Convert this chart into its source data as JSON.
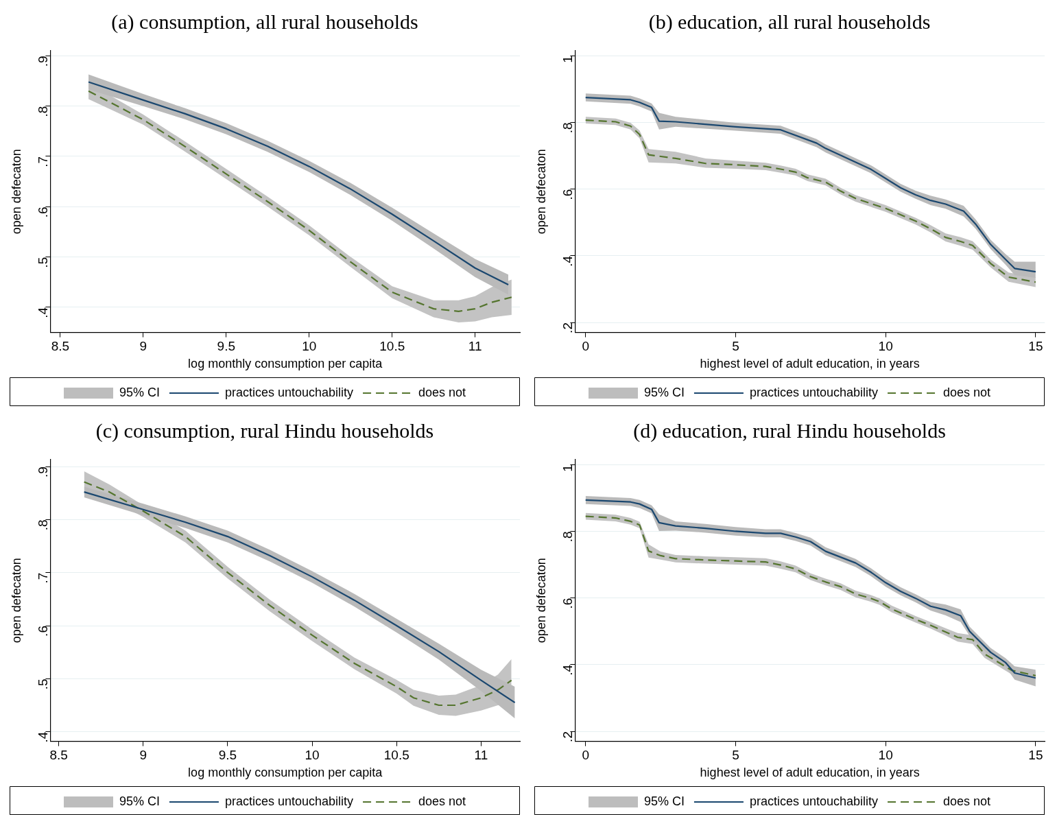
{
  "chart_data": [
    {
      "type": "line",
      "title": "(a) consumption, all rural households",
      "xlabel": "log monthly consumption per capita",
      "ylabel": "open defecaton",
      "legend_title": "95% CI",
      "legend": "bottom",
      "grid": "y",
      "marker": "none",
      "xlim": [
        8.44,
        11.27
      ],
      "xticks": [
        8.5,
        9,
        9.5,
        10,
        10.5,
        11
      ],
      "ylim": [
        0.35,
        0.91
      ],
      "yticks": [
        {
          "value": 0.4,
          "label": ".4"
        },
        {
          "value": 0.5,
          "label": ".5"
        },
        {
          "value": 0.6,
          "label": ".6"
        },
        {
          "value": 0.7,
          "label": ".7"
        },
        {
          "value": 0.8,
          "label": ".8"
        },
        {
          "value": 0.9,
          "label": ".9"
        }
      ],
      "series": [
        {
          "name": "practices untouchability",
          "color": "#1a476f",
          "line_style": "solid",
          "x": [
            8.67,
            9,
            9.25,
            9.5,
            9.75,
            10,
            10.25,
            10.5,
            10.75,
            11,
            11.2
          ],
          "values": [
            0.848,
            0.812,
            0.785,
            0.755,
            0.72,
            0.68,
            0.635,
            0.585,
            0.532,
            0.478,
            0.445
          ],
          "lower": [
            0.833,
            0.8,
            0.774,
            0.744,
            0.709,
            0.669,
            0.623,
            0.572,
            0.517,
            0.46,
            0.425
          ],
          "upper": [
            0.863,
            0.824,
            0.796,
            0.766,
            0.731,
            0.691,
            0.647,
            0.598,
            0.547,
            0.496,
            0.465
          ]
        },
        {
          "name": "does not",
          "color": "#55752f",
          "line_style": "dashed",
          "x": [
            8.67,
            9,
            9.25,
            9.5,
            9.75,
            10,
            10.25,
            10.5,
            10.75,
            10.9,
            11,
            11.1,
            11.22
          ],
          "values": [
            0.83,
            0.773,
            0.72,
            0.665,
            0.61,
            0.553,
            0.49,
            0.43,
            0.397,
            0.392,
            0.397,
            0.41,
            0.42
          ],
          "lower": [
            0.814,
            0.763,
            0.71,
            0.655,
            0.6,
            0.543,
            0.48,
            0.418,
            0.38,
            0.37,
            0.372,
            0.38,
            0.385
          ],
          "upper": [
            0.846,
            0.783,
            0.73,
            0.675,
            0.62,
            0.563,
            0.5,
            0.442,
            0.414,
            0.414,
            0.422,
            0.44,
            0.455
          ]
        }
      ]
    },
    {
      "type": "line",
      "title": "(b) education, all rural households",
      "xlabel": "highest level of adult education, in years",
      "ylabel": "open defecaton",
      "legend_title": "95% CI",
      "legend": "bottom",
      "grid": "y",
      "marker": "none",
      "xlim": [
        -0.35,
        15.3
      ],
      "xticks": [
        0,
        5,
        10,
        15
      ],
      "ylim": [
        0.17,
        1.015
      ],
      "yticks": [
        {
          "value": 0.2,
          "label": ".2"
        },
        {
          "value": 0.4,
          "label": ".4"
        },
        {
          "value": 0.6,
          "label": ".6"
        },
        {
          "value": 0.8,
          "label": ".8"
        },
        1
      ],
      "series": [
        {
          "name": "practices untouchability",
          "color": "#1a476f",
          "line_style": "solid",
          "x": [
            0,
            1.5,
            1.8,
            2.2,
            2.45,
            3,
            5,
            6.5,
            7.7,
            8,
            9.5,
            10.5,
            11,
            11.5,
            12,
            12.6,
            13,
            13.5,
            14,
            14.3,
            15
          ],
          "values": [
            0.875,
            0.868,
            0.86,
            0.845,
            0.804,
            0.802,
            0.787,
            0.778,
            0.738,
            0.722,
            0.66,
            0.604,
            0.583,
            0.566,
            0.555,
            0.534,
            0.495,
            0.434,
            0.389,
            0.362,
            0.352
          ],
          "lower": [
            0.863,
            0.856,
            0.848,
            0.833,
            0.779,
            0.787,
            0.775,
            0.766,
            0.726,
            0.71,
            0.648,
            0.592,
            0.571,
            0.552,
            0.541,
            0.518,
            0.481,
            0.42,
            0.373,
            0.342,
            0.334
          ],
          "upper": [
            0.887,
            0.88,
            0.872,
            0.857,
            0.829,
            0.817,
            0.799,
            0.79,
            0.75,
            0.734,
            0.672,
            0.616,
            0.595,
            0.58,
            0.569,
            0.55,
            0.509,
            0.448,
            0.405,
            0.382,
            0.382
          ]
        },
        {
          "name": "does not",
          "color": "#55752f",
          "line_style": "dashed",
          "x": [
            0,
            1,
            1.5,
            1.8,
            2.1,
            3,
            4,
            5,
            6,
            6.5,
            7,
            7.4,
            8,
            8.5,
            9,
            10,
            11,
            11.5,
            12,
            12.5,
            12.9,
            13.5,
            14.1,
            15
          ],
          "values": [
            0.807,
            0.802,
            0.789,
            0.764,
            0.703,
            0.692,
            0.677,
            0.673,
            0.668,
            0.66,
            0.651,
            0.634,
            0.621,
            0.594,
            0.572,
            0.542,
            0.504,
            0.481,
            0.455,
            0.443,
            0.431,
            0.377,
            0.336,
            0.321
          ],
          "lower": [
            0.797,
            0.792,
            0.779,
            0.752,
            0.68,
            0.677,
            0.664,
            0.661,
            0.657,
            0.649,
            0.641,
            0.624,
            0.611,
            0.584,
            0.562,
            0.532,
            0.494,
            0.47,
            0.443,
            0.43,
            0.418,
            0.365,
            0.322,
            0.306
          ],
          "upper": [
            0.817,
            0.812,
            0.799,
            0.776,
            0.72,
            0.712,
            0.692,
            0.685,
            0.679,
            0.671,
            0.661,
            0.644,
            0.631,
            0.604,
            0.582,
            0.552,
            0.514,
            0.492,
            0.467,
            0.456,
            0.444,
            0.389,
            0.35,
            0.336
          ]
        }
      ]
    },
    {
      "type": "line",
      "title": "(c) consumption, rural Hindu households",
      "xlabel": "log monthly consumption per capita",
      "ylabel": "open defecaton",
      "legend_title": "95% CI",
      "legend": "bottom",
      "grid": "y",
      "marker": "none",
      "xlim": [
        8.45,
        11.23
      ],
      "xticks": [
        8.5,
        9,
        9.5,
        10,
        10.5,
        11
      ],
      "ylim": [
        0.382,
        0.913
      ],
      "yticks": [
        {
          "value": 0.4,
          "label": ".4"
        },
        {
          "value": 0.5,
          "label": ".5"
        },
        {
          "value": 0.6,
          "label": ".6"
        },
        {
          "value": 0.7,
          "label": ".7"
        },
        {
          "value": 0.8,
          "label": ".8"
        },
        {
          "value": 0.9,
          "label": ".9"
        }
      ],
      "series": [
        {
          "name": "practices untouchability",
          "color": "#1a476f",
          "line_style": "solid",
          "x": [
            8.65,
            9,
            9.25,
            9.5,
            9.75,
            10,
            10.25,
            10.5,
            10.75,
            11,
            11.2
          ],
          "values": [
            0.852,
            0.819,
            0.795,
            0.768,
            0.732,
            0.692,
            0.648,
            0.6,
            0.551,
            0.497,
            0.455
          ],
          "lower": [
            0.842,
            0.808,
            0.784,
            0.757,
            0.721,
            0.681,
            0.636,
            0.587,
            0.536,
            0.477,
            0.425
          ],
          "upper": [
            0.862,
            0.83,
            0.806,
            0.779,
            0.743,
            0.703,
            0.66,
            0.613,
            0.566,
            0.517,
            0.485
          ]
        },
        {
          "name": "does not",
          "color": "#55752f",
          "line_style": "dashed",
          "x": [
            8.65,
            8.8,
            9,
            9.25,
            9.5,
            9.75,
            10,
            10.25,
            10.5,
            10.6,
            10.75,
            10.85,
            11,
            11.1,
            11.18
          ],
          "values": [
            0.871,
            0.852,
            0.816,
            0.768,
            0.7,
            0.638,
            0.582,
            0.529,
            0.485,
            0.464,
            0.45,
            0.45,
            0.464,
            0.479,
            0.497
          ],
          "lower": [
            0.851,
            0.838,
            0.805,
            0.757,
            0.689,
            0.627,
            0.571,
            0.518,
            0.472,
            0.449,
            0.432,
            0.43,
            0.44,
            0.45,
            0.457
          ],
          "upper": [
            0.891,
            0.866,
            0.827,
            0.779,
            0.711,
            0.649,
            0.593,
            0.54,
            0.498,
            0.479,
            0.468,
            0.47,
            0.488,
            0.508,
            0.537
          ]
        }
      ]
    },
    {
      "type": "line",
      "title": "(d) education, rural Hindu households",
      "xlabel": "highest level of adult education, in years",
      "ylabel": "open defecaton",
      "legend_title": "95% CI",
      "legend": "bottom",
      "grid": "y",
      "marker": "none",
      "xlim": [
        -0.35,
        15.3
      ],
      "xticks": [
        0,
        5,
        10,
        15
      ],
      "ylim": [
        0.17,
        1.015
      ],
      "yticks": [
        {
          "value": 0.2,
          "label": ".2"
        },
        {
          "value": 0.4,
          "label": ".4"
        },
        {
          "value": 0.6,
          "label": ".6"
        },
        {
          "value": 0.8,
          "label": ".8"
        },
        1
      ],
      "series": [
        {
          "name": "practices untouchability",
          "color": "#1a476f",
          "line_style": "solid",
          "x": [
            0,
            1.5,
            1.8,
            2.2,
            2.45,
            3,
            4,
            5,
            6,
            6.5,
            7,
            7.5,
            8,
            9,
            9.5,
            10,
            10.5,
            11,
            11.5,
            12,
            12.5,
            12.8,
            13.5,
            14,
            14.3,
            15
          ],
          "values": [
            0.894,
            0.888,
            0.882,
            0.866,
            0.826,
            0.816,
            0.809,
            0.8,
            0.794,
            0.794,
            0.783,
            0.769,
            0.74,
            0.705,
            0.678,
            0.646,
            0.62,
            0.599,
            0.575,
            0.564,
            0.547,
            0.5,
            0.437,
            0.406,
            0.375,
            0.36
          ],
          "lower": [
            0.882,
            0.876,
            0.87,
            0.854,
            0.801,
            0.802,
            0.796,
            0.787,
            0.782,
            0.782,
            0.771,
            0.757,
            0.728,
            0.693,
            0.666,
            0.634,
            0.608,
            0.587,
            0.562,
            0.548,
            0.528,
            0.486,
            0.424,
            0.393,
            0.355,
            0.335
          ],
          "upper": [
            0.906,
            0.9,
            0.894,
            0.878,
            0.851,
            0.83,
            0.822,
            0.813,
            0.806,
            0.806,
            0.795,
            0.781,
            0.752,
            0.717,
            0.69,
            0.658,
            0.632,
            0.611,
            0.588,
            0.58,
            0.566,
            0.514,
            0.45,
            0.419,
            0.395,
            0.385
          ]
        },
        {
          "name": "does not",
          "color": "#55752f",
          "line_style": "dashed",
          "x": [
            0,
            1,
            1.5,
            1.8,
            2.1,
            2.5,
            3,
            4,
            5,
            6,
            6.5,
            7,
            7.5,
            8,
            8.5,
            9,
            9.5,
            9.8,
            10.2,
            11,
            11.5,
            12,
            12.4,
            12.9,
            13.3,
            14.2,
            15
          ],
          "values": [
            0.845,
            0.84,
            0.83,
            0.819,
            0.741,
            0.727,
            0.718,
            0.714,
            0.711,
            0.708,
            0.699,
            0.687,
            0.664,
            0.648,
            0.634,
            0.612,
            0.599,
            0.589,
            0.567,
            0.536,
            0.518,
            0.498,
            0.482,
            0.475,
            0.432,
            0.383,
            0.367
          ],
          "lower": [
            0.835,
            0.83,
            0.82,
            0.809,
            0.721,
            0.715,
            0.707,
            0.703,
            0.7,
            0.697,
            0.688,
            0.677,
            0.654,
            0.638,
            0.624,
            0.602,
            0.589,
            0.579,
            0.557,
            0.526,
            0.508,
            0.487,
            0.469,
            0.462,
            0.42,
            0.371,
            0.355
          ],
          "upper": [
            0.855,
            0.85,
            0.84,
            0.829,
            0.761,
            0.739,
            0.729,
            0.725,
            0.722,
            0.719,
            0.71,
            0.697,
            0.674,
            0.658,
            0.644,
            0.622,
            0.609,
            0.599,
            0.577,
            0.546,
            0.528,
            0.509,
            0.495,
            0.488,
            0.444,
            0.395,
            0.379
          ]
        }
      ]
    }
  ]
}
